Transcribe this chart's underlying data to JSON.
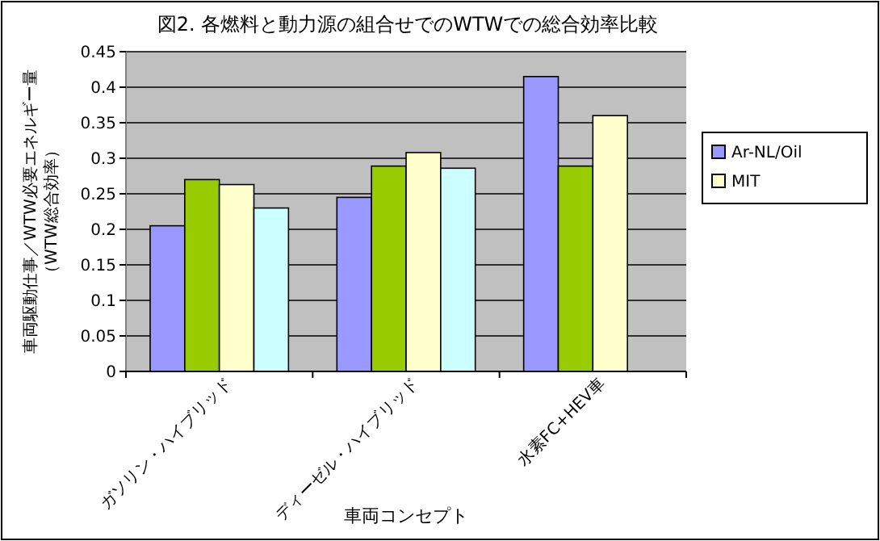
{
  "chart_data": {
    "type": "bar",
    "title": "図2. 各燃料と動力源の組合せでのWTWでの総合効率比較",
    "xlabel": "車両コンセプト",
    "ylabel": "車両駆動仕事／WTW必要エネルギー量（WTW総合効率）",
    "categories": [
      "ガソリン・ハイブリッド",
      "ディーゼル・ハイブリッド",
      "水素FC+HEV車"
    ],
    "series": [
      {
        "name": "Ar-NL/Oil",
        "color": "#9999ff",
        "values": [
          0.205,
          0.245,
          0.415
        ]
      },
      {
        "color": "#99cc00",
        "values": [
          0.27,
          0.289,
          0.289
        ]
      },
      {
        "name": "MIT",
        "color": "#ffffcc",
        "values": [
          0.263,
          0.308,
          0.36
        ]
      },
      {
        "color": "#ccffff",
        "values": [
          0.23,
          0.286,
          null
        ]
      }
    ],
    "ylim": [
      0,
      0.45
    ],
    "yticks": [
      0,
      0.05,
      0.1,
      0.15,
      0.2,
      0.25,
      0.3,
      0.35,
      0.4,
      0.45
    ],
    "grid": "y",
    "legend": "right"
  }
}
